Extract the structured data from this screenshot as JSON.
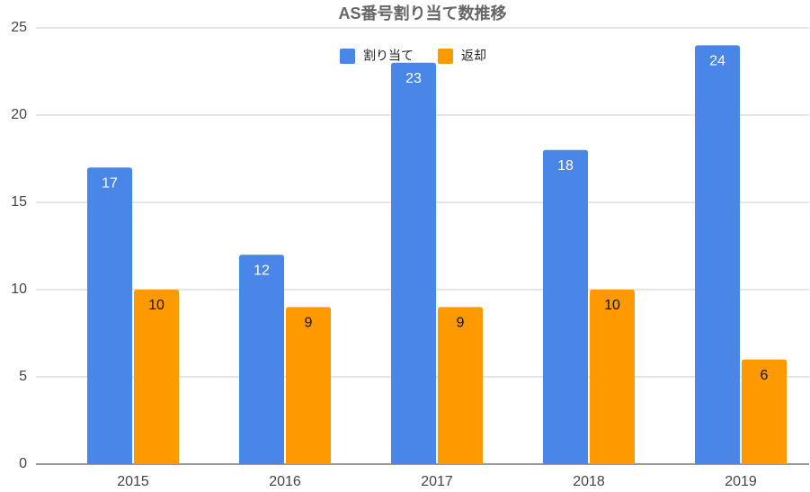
{
  "chart_data": {
    "type": "bar",
    "title": "AS番号割り当て数推移",
    "categories": [
      "2015",
      "2016",
      "2017",
      "2018",
      "2019"
    ],
    "series": [
      {
        "name": "割り当て",
        "color": "#4a86e8",
        "values": [
          17,
          12,
          23,
          18,
          24
        ]
      },
      {
        "name": "返却",
        "color": "#ff9900",
        "values": [
          10,
          9,
          9,
          10,
          6
        ]
      }
    ],
    "ylim": [
      0,
      25
    ],
    "yticks": [
      0,
      5,
      10,
      15,
      20,
      25
    ],
    "grid": true,
    "legend": "top"
  }
}
